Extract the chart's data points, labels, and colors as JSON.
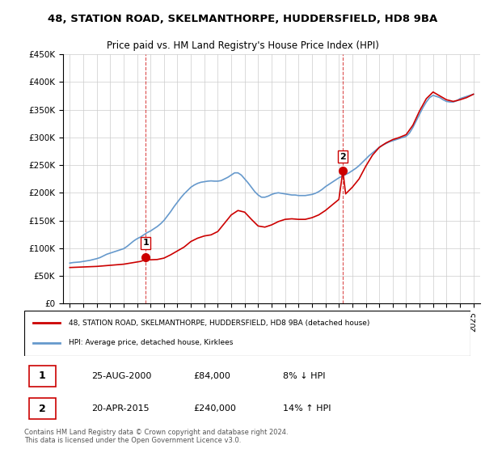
{
  "title1": "48, STATION ROAD, SKELMANTHORPE, HUDDERSFIELD, HD8 9BA",
  "title2": "Price paid vs. HM Land Registry's House Price Index (HPI)",
  "legend_line1": "48, STATION ROAD, SKELMANTHORPE, HUDDERSFIELD, HD8 9BA (detached house)",
  "legend_line2": "HPI: Average price, detached house, Kirklees",
  "footnote": "Contains HM Land Registry data © Crown copyright and database right 2024.\nThis data is licensed under the Open Government Licence v3.0.",
  "sale1_label": "1",
  "sale1_date": "25-AUG-2000",
  "sale1_price": "£84,000",
  "sale1_hpi": "8% ↓ HPI",
  "sale2_label": "2",
  "sale2_date": "20-APR-2015",
  "sale2_price": "£240,000",
  "sale2_hpi": "14% ↑ HPI",
  "red_color": "#cc0000",
  "blue_color": "#6699cc",
  "marker_color": "#cc0000",
  "grid_color": "#cccccc",
  "background_color": "#ffffff",
  "sale1_x": 2000.646,
  "sale1_y": 84000,
  "sale2_x": 2015.3,
  "sale2_y": 240000,
  "hpi_x": [
    1995,
    1995.25,
    1995.5,
    1995.75,
    1996,
    1996.25,
    1996.5,
    1996.75,
    1997,
    1997.25,
    1997.5,
    1997.75,
    1998,
    1998.25,
    1998.5,
    1998.75,
    1999,
    1999.25,
    1999.5,
    1999.75,
    2000,
    2000.25,
    2000.5,
    2000.75,
    2001,
    2001.25,
    2001.5,
    2001.75,
    2002,
    2002.25,
    2002.5,
    2002.75,
    2003,
    2003.25,
    2003.5,
    2003.75,
    2004,
    2004.25,
    2004.5,
    2004.75,
    2005,
    2005.25,
    2005.5,
    2005.75,
    2006,
    2006.25,
    2006.5,
    2006.75,
    2007,
    2007.25,
    2007.5,
    2007.75,
    2008,
    2008.25,
    2008.5,
    2008.75,
    2009,
    2009.25,
    2009.5,
    2009.75,
    2010,
    2010.25,
    2010.5,
    2010.75,
    2011,
    2011.25,
    2011.5,
    2011.75,
    2012,
    2012.25,
    2012.5,
    2012.75,
    2013,
    2013.25,
    2013.5,
    2013.75,
    2014,
    2014.25,
    2014.5,
    2014.75,
    2015,
    2015.25,
    2015.5,
    2015.75,
    2016,
    2016.25,
    2016.5,
    2016.75,
    2017,
    2017.25,
    2017.5,
    2017.75,
    2018,
    2018.25,
    2018.5,
    2018.75,
    2019,
    2019.25,
    2019.5,
    2019.75,
    2020,
    2020.25,
    2020.5,
    2020.75,
    2021,
    2021.25,
    2021.5,
    2021.75,
    2022,
    2022.25,
    2022.5,
    2022.75,
    2023,
    2023.25,
    2023.5,
    2023.75,
    2024,
    2024.25,
    2024.5,
    2024.75,
    2025
  ],
  "hpi_y": [
    73000,
    74000,
    74500,
    75000,
    76000,
    77000,
    78000,
    79500,
    81000,
    83000,
    86000,
    89000,
    91000,
    93000,
    95000,
    97000,
    99000,
    103000,
    108000,
    113000,
    117000,
    120000,
    124000,
    128000,
    131000,
    135000,
    139000,
    144000,
    150000,
    158000,
    166000,
    175000,
    183000,
    191000,
    198000,
    204000,
    210000,
    214000,
    217000,
    219000,
    220000,
    221000,
    221500,
    221000,
    221000,
    222000,
    225000,
    228000,
    232000,
    236000,
    236000,
    232000,
    225000,
    218000,
    210000,
    202000,
    196000,
    192000,
    192000,
    194000,
    197000,
    199000,
    200000,
    199000,
    198000,
    197000,
    196000,
    196000,
    195000,
    195000,
    195000,
    196000,
    197000,
    199000,
    202000,
    206000,
    211000,
    215000,
    219000,
    223000,
    227000,
    230000,
    233000,
    236000,
    240000,
    244000,
    249000,
    255000,
    261000,
    267000,
    272000,
    277000,
    282000,
    286000,
    289000,
    292000,
    294000,
    296000,
    298000,
    300000,
    302000,
    308000,
    318000,
    330000,
    342000,
    354000,
    364000,
    372000,
    376000,
    374000,
    372000,
    368000,
    365000,
    364000,
    364000,
    366000,
    370000,
    372000,
    374000,
    376000,
    378000
  ],
  "price_x": [
    1995,
    1995.5,
    1996,
    1996.5,
    1997,
    1997.5,
    1998,
    1998.5,
    1999,
    1999.5,
    2000,
    2000.25,
    2000.5,
    2000.646,
    2000.75,
    2001,
    2001.5,
    2002,
    2002.5,
    2003,
    2003.5,
    2004,
    2004.5,
    2005,
    2005.5,
    2006,
    2006.5,
    2007,
    2007.5,
    2008,
    2008.5,
    2009,
    2009.5,
    2010,
    2010.5,
    2011,
    2011.5,
    2012,
    2012.5,
    2013,
    2013.5,
    2014,
    2014.5,
    2015,
    2015.3,
    2015.5,
    2016,
    2016.5,
    2017,
    2017.5,
    2018,
    2018.5,
    2019,
    2019.5,
    2020,
    2020.5,
    2021,
    2021.5,
    2022,
    2022.5,
    2023,
    2023.5,
    2024,
    2024.5,
    2025
  ],
  "price_y": [
    65000,
    65500,
    66000,
    66500,
    67000,
    68000,
    69000,
    70000,
    71000,
    73000,
    75000,
    76000,
    78000,
    84000,
    80000,
    79000,
    79500,
    82000,
    88000,
    95000,
    102000,
    112000,
    118000,
    122000,
    124000,
    130000,
    145000,
    160000,
    168000,
    165000,
    152000,
    140000,
    138000,
    142000,
    148000,
    152000,
    153000,
    152000,
    152000,
    155000,
    160000,
    168000,
    178000,
    188000,
    240000,
    198000,
    210000,
    225000,
    248000,
    268000,
    282000,
    290000,
    296000,
    300000,
    305000,
    322000,
    348000,
    370000,
    382000,
    375000,
    368000,
    365000,
    368000,
    372000,
    378000
  ],
  "ylim": [
    0,
    450000
  ],
  "xlim": [
    1994.5,
    2025.5
  ],
  "yticks": [
    0,
    50000,
    100000,
    150000,
    200000,
    250000,
    300000,
    350000,
    400000,
    450000
  ],
  "xticks": [
    1995,
    1996,
    1997,
    1998,
    1999,
    2000,
    2001,
    2002,
    2003,
    2004,
    2005,
    2006,
    2007,
    2008,
    2009,
    2010,
    2011,
    2012,
    2013,
    2014,
    2015,
    2016,
    2017,
    2018,
    2019,
    2020,
    2021,
    2022,
    2023,
    2024,
    2025
  ]
}
